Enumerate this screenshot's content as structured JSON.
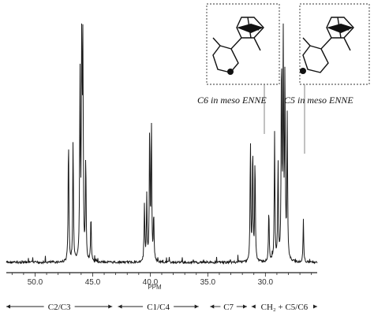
{
  "chart_data": {
    "type": "line",
    "title": "",
    "xlabel": "PPM",
    "ylabel": "",
    "x_reversed": true,
    "xlim": [
      52.5,
      25.5
    ],
    "ylim": [
      0,
      1
    ],
    "grid": false,
    "x_ticks": [
      {
        "value": 50.0,
        "label": "50.0"
      },
      {
        "value": 45.0,
        "label": "45.0"
      },
      {
        "value": 40.0,
        "label": "40.0"
      },
      {
        "value": 35.0,
        "label": "35.0"
      },
      {
        "value": 30.0,
        "label": "30.0"
      }
    ],
    "peaks": [
      {
        "ppm": 47.1,
        "height": 0.55
      },
      {
        "ppm": 46.7,
        "height": 0.54
      },
      {
        "ppm": 46.1,
        "height": 0.8
      },
      {
        "ppm": 45.95,
        "height": 1.0
      },
      {
        "ppm": 45.85,
        "height": 0.95
      },
      {
        "ppm": 45.6,
        "height": 0.45
      },
      {
        "ppm": 45.15,
        "height": 0.2
      },
      {
        "ppm": 40.5,
        "height": 0.25
      },
      {
        "ppm": 40.3,
        "height": 0.28
      },
      {
        "ppm": 40.05,
        "height": 0.58
      },
      {
        "ppm": 39.9,
        "height": 0.6
      },
      {
        "ppm": 39.7,
        "height": 0.2
      },
      {
        "ppm": 31.3,
        "height": 0.52
      },
      {
        "ppm": 31.1,
        "height": 0.5
      },
      {
        "ppm": 30.9,
        "height": 0.45
      },
      {
        "ppm": 29.7,
        "height": 0.23
      },
      {
        "ppm": 29.2,
        "height": 0.55
      },
      {
        "ppm": 28.9,
        "height": 0.43
      },
      {
        "ppm": 28.6,
        "height": 0.9
      },
      {
        "ppm": 28.45,
        "height": 1.0
      },
      {
        "ppm": 28.3,
        "height": 0.8
      },
      {
        "ppm": 28.1,
        "height": 0.62
      },
      {
        "ppm": 26.7,
        "height": 0.18
      }
    ],
    "annotations": [
      {
        "label": "C6 in meso ENNE",
        "ppm": 29.6
      },
      {
        "label": "C5 in meso ENNE",
        "ppm": 26.7
      }
    ],
    "regions": [
      {
        "label": "C2/C3",
        "from": 52.5,
        "to": 43.3
      },
      {
        "label": "C1/C4",
        "from": 42.8,
        "to": 35.8
      },
      {
        "label": "C7",
        "from": 34.8,
        "to": 31.6
      },
      {
        "label": "CH₂ + C5/C6",
        "from": 31.2,
        "to": 25.5
      }
    ]
  }
}
